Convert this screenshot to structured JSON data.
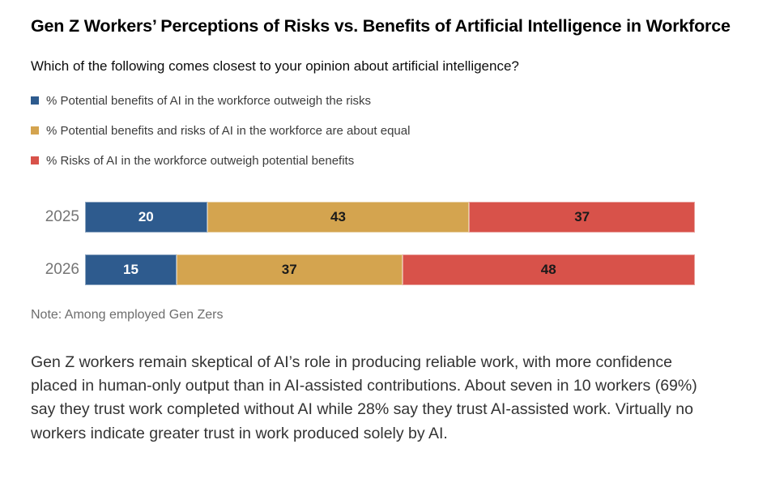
{
  "page": {
    "background": "#ffffff"
  },
  "header": {
    "title": "Gen Z Workers’ Perceptions of Risks vs. Benefits of Artificial Intelligence in Workforce",
    "question": "Which of the following comes closest to your opinion about artificial intelligence?"
  },
  "legend": [
    {
      "label": "% Potential benefits of AI in the workforce outweigh the risks",
      "color": "#2E5B8E"
    },
    {
      "label": "% Potential benefits and risks of AI in the workforce are about equal",
      "color": "#D4A44F"
    },
    {
      "label": "% Risks of AI in the workforce outweigh potential benefits",
      "color": "#D8524A"
    }
  ],
  "chart_data": {
    "type": "bar",
    "orientation": "horizontal",
    "stacked": true,
    "title": "Gen Z Workers’ Perceptions of Risks vs. Benefits of Artificial Intelligence in Workforce",
    "categories": [
      "2025",
      "2026"
    ],
    "series": [
      {
        "name": "% Potential benefits of AI in the workforce outweigh the risks",
        "color": "#2E5B8E",
        "label_color": "#ffffff",
        "values": [
          20,
          15
        ]
      },
      {
        "name": "% Potential benefits and risks of AI in the workforce are about equal",
        "color": "#D4A44F",
        "label_color": "#1a1a1a",
        "values": [
          43,
          37
        ]
      },
      {
        "name": "% Risks of AI in the workforce outweigh potential benefits",
        "color": "#D8524A",
        "label_color": "#1a1a1a",
        "values": [
          37,
          48
        ]
      }
    ],
    "xlim": [
      0,
      100
    ],
    "value_labels": true,
    "grid": false,
    "legend_position": "top-left"
  },
  "note": "Note: Among employed Gen Zers",
  "body": "Gen Z workers remain skeptical of AI’s role in producing reliable work, with more confidence placed in human-only output than in AI-assisted contributions. About seven in 10 workers (69%) say they trust work completed without AI while 28% say they trust AI-assisted work. Virtually no workers indicate greater trust in work produced solely by AI."
}
